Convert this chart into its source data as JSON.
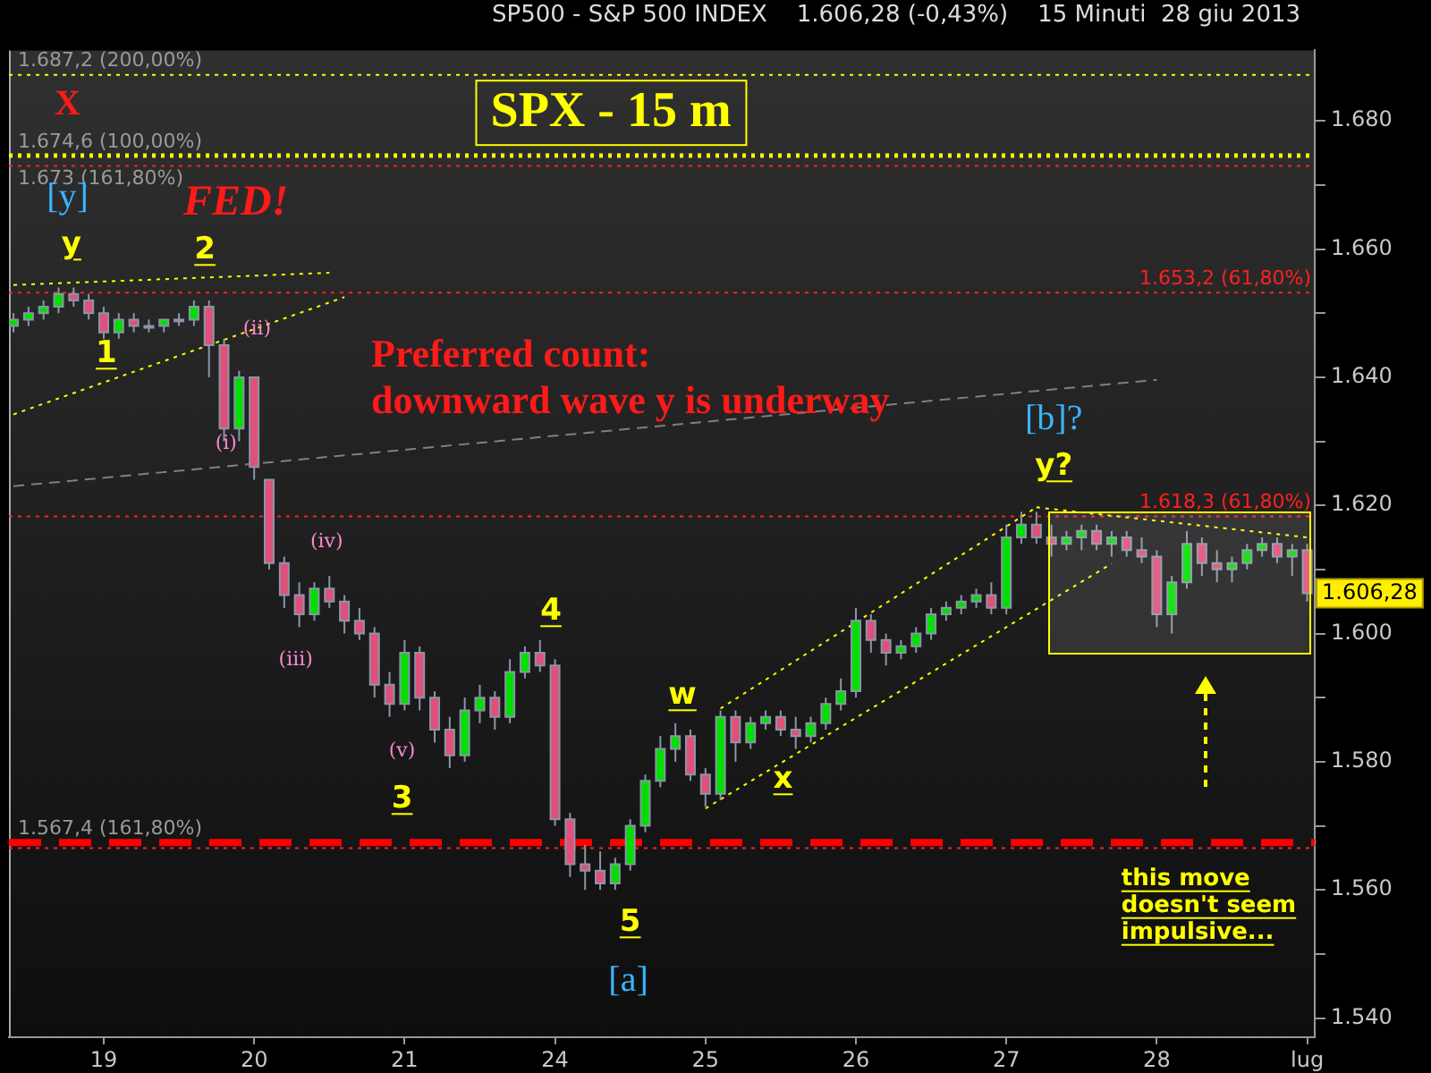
{
  "chart_data": {
    "type": "candlestick",
    "title": "SP500 - S&P 500 INDEX    1.606,28 (-0,43%)    15 Minuti  28 giu 2013",
    "categories": [
      null,
      null,
      null,
      null,
      null,
      null,
      "19",
      null,
      null,
      null,
      null,
      null,
      null,
      null,
      null,
      null,
      "20",
      null,
      null,
      null,
      null,
      null,
      null,
      null,
      null,
      null,
      "21",
      null,
      null,
      null,
      null,
      null,
      null,
      null,
      null,
      null,
      "24",
      null,
      null,
      null,
      null,
      null,
      null,
      null,
      null,
      null,
      "25",
      null,
      null,
      null,
      null,
      null,
      null,
      null,
      null,
      null,
      "26",
      null,
      null,
      null,
      null,
      null,
      null,
      null,
      null,
      null,
      "27",
      null,
      null,
      null,
      null,
      null,
      null,
      null,
      null,
      null,
      "28",
      null,
      null,
      null,
      null,
      null,
      null,
      null,
      null,
      null,
      "lug"
    ],
    "ohlc": [
      [
        1648,
        1650,
        1647,
        1649
      ],
      [
        1649,
        1651,
        1648,
        1650
      ],
      [
        1650,
        1652,
        1649,
        1651
      ],
      [
        1651,
        1654,
        1650,
        1653
      ],
      [
        1653,
        1654,
        1651,
        1652
      ],
      [
        1652,
        1653,
        1649,
        1650
      ],
      [
        1650,
        1651,
        1646,
        1647
      ],
      [
        1647,
        1650,
        1646,
        1649
      ],
      [
        1649,
        1650,
        1647,
        1648
      ],
      [
        1648,
        1649,
        1647,
        1648
      ],
      [
        1648,
        1649,
        1647,
        1649
      ],
      [
        1649,
        1650,
        1648,
        1649
      ],
      [
        1649,
        1652,
        1648,
        1651
      ],
      [
        1651,
        1652,
        1640,
        1645
      ],
      [
        1645,
        1646,
        1630,
        1632
      ],
      [
        1632,
        1641,
        1630,
        1640
      ],
      [
        1640,
        1640,
        1624,
        1626
      ],
      [
        1624,
        1624,
        1610,
        1611
      ],
      [
        1611,
        1612,
        1604,
        1606
      ],
      [
        1606,
        1608,
        1601,
        1603
      ],
      [
        1603,
        1608,
        1602,
        1607
      ],
      [
        1607,
        1609,
        1604,
        1605
      ],
      [
        1605,
        1606,
        1600,
        1602
      ],
      [
        1602,
        1604,
        1599,
        1600
      ],
      [
        1600,
        1601,
        1590,
        1592
      ],
      [
        1592,
        1594,
        1587,
        1589
      ],
      [
        1589,
        1599,
        1588,
        1597
      ],
      [
        1597,
        1598,
        1588,
        1590
      ],
      [
        1590,
        1591,
        1583,
        1585
      ],
      [
        1585,
        1587,
        1579,
        1581
      ],
      [
        1581,
        1590,
        1580,
        1588
      ],
      [
        1588,
        1592,
        1586,
        1590
      ],
      [
        1590,
        1591,
        1585,
        1587
      ],
      [
        1587,
        1596,
        1586,
        1594
      ],
      [
        1594,
        1598,
        1593,
        1597
      ],
      [
        1597,
        1599,
        1594,
        1595
      ],
      [
        1595,
        1596,
        1570,
        1571
      ],
      [
        1571,
        1572,
        1562,
        1564
      ],
      [
        1564,
        1567,
        1560,
        1563
      ],
      [
        1563,
        1566,
        1560,
        1561
      ],
      [
        1561,
        1565,
        1560,
        1564
      ],
      [
        1564,
        1571,
        1563,
        1570
      ],
      [
        1570,
        1578,
        1569,
        1577
      ],
      [
        1577,
        1584,
        1576,
        1582
      ],
      [
        1582,
        1586,
        1580,
        1584
      ],
      [
        1584,
        1585,
        1577,
        1578
      ],
      [
        1578,
        1579,
        1573,
        1575
      ],
      [
        1575,
        1588,
        1574,
        1587
      ],
      [
        1587,
        1588,
        1580,
        1583
      ],
      [
        1583,
        1587,
        1582,
        1586
      ],
      [
        1586,
        1588,
        1585,
        1587
      ],
      [
        1587,
        1588,
        1584,
        1585
      ],
      [
        1585,
        1587,
        1582,
        1584
      ],
      [
        1584,
        1587,
        1583,
        1586
      ],
      [
        1586,
        1590,
        1585,
        1589
      ],
      [
        1589,
        1593,
        1588,
        1591
      ],
      [
        1591,
        1604,
        1590,
        1602
      ],
      [
        1602,
        1603,
        1597,
        1599
      ],
      [
        1599,
        1600,
        1595,
        1597
      ],
      [
        1597,
        1599,
        1596,
        1598
      ],
      [
        1598,
        1601,
        1597,
        1600
      ],
      [
        1600,
        1604,
        1599,
        1603
      ],
      [
        1603,
        1605,
        1602,
        1604
      ],
      [
        1604,
        1606,
        1603,
        1605
      ],
      [
        1605,
        1607,
        1604,
        1606
      ],
      [
        1606,
        1608,
        1603,
        1604
      ],
      [
        1604,
        1617,
        1603,
        1615
      ],
      [
        1615,
        1619,
        1614,
        1617
      ],
      [
        1617,
        1619,
        1614,
        1615
      ],
      [
        1615,
        1617,
        1612,
        1614
      ],
      [
        1614,
        1616,
        1613,
        1615
      ],
      [
        1615,
        1617,
        1613,
        1616
      ],
      [
        1616,
        1617,
        1613,
        1614
      ],
      [
        1614,
        1616,
        1612,
        1615
      ],
      [
        1615,
        1616,
        1612,
        1613
      ],
      [
        1613,
        1615,
        1611,
        1612
      ],
      [
        1612,
        1613,
        1601,
        1603
      ],
      [
        1603,
        1609,
        1600,
        1608
      ],
      [
        1608,
        1616,
        1607,
        1614
      ],
      [
        1614,
        1615,
        1609,
        1611
      ],
      [
        1611,
        1613,
        1608,
        1610
      ],
      [
        1610,
        1612,
        1608,
        1611
      ],
      [
        1611,
        1614,
        1610,
        1613
      ],
      [
        1613,
        1615,
        1612,
        1614
      ],
      [
        1614,
        1615,
        1611,
        1612
      ],
      [
        1612,
        1614,
        1609,
        1613
      ],
      [
        1613,
        1614,
        1605,
        1606.28
      ]
    ],
    "series": [
      {
        "type": "line",
        "color": "#ffff00",
        "line_style": "dotted",
        "values": [
          1654.4,
          null,
          null,
          null,
          null,
          null,
          null,
          null,
          null,
          null,
          null,
          null,
          null,
          null,
          null,
          null,
          null,
          null,
          null,
          null,
          null,
          1656.3,
          null,
          null,
          null,
          null,
          null,
          null,
          null,
          null,
          null,
          null,
          null,
          null,
          null,
          null,
          null,
          null,
          null,
          null,
          null,
          null,
          null,
          null,
          null,
          null,
          null,
          null,
          null,
          null,
          null,
          null,
          null,
          null,
          null,
          null,
          null,
          null,
          null,
          null,
          null,
          null,
          null,
          null,
          null,
          null,
          null,
          null,
          null,
          null,
          null,
          null,
          null,
          null,
          null,
          null,
          null,
          null,
          null,
          null,
          null,
          null,
          null,
          null,
          null,
          null,
          null
        ]
      },
      {
        "type": "line",
        "color": "#ffff00",
        "line_style": "dotted",
        "values": [
          1634.2,
          null,
          null,
          null,
          null,
          null,
          null,
          null,
          null,
          null,
          null,
          null,
          null,
          null,
          null,
          null,
          null,
          null,
          null,
          null,
          null,
          null,
          1652.5,
          null,
          null,
          null,
          null,
          null,
          null,
          null,
          null,
          null,
          null,
          null,
          null,
          null,
          null,
          null,
          null,
          null,
          null,
          null,
          null,
          null,
          null,
          null,
          null,
          null,
          null,
          null,
          null,
          null,
          null,
          null,
          null,
          null,
          null,
          null,
          null,
          null,
          null,
          null,
          null,
          null,
          null,
          null,
          null,
          null,
          null,
          null,
          null,
          null,
          null,
          null,
          null,
          null,
          null,
          null,
          null,
          null,
          null,
          null,
          null,
          null,
          null,
          null,
          null
        ]
      },
      {
        "type": "line",
        "color": "#808080",
        "line_style": "dashed",
        "values": [
          1623,
          null,
          null,
          null,
          null,
          null,
          null,
          null,
          null,
          null,
          null,
          null,
          null,
          null,
          null,
          null,
          null,
          null,
          null,
          null,
          null,
          null,
          null,
          null,
          null,
          null,
          null,
          null,
          null,
          null,
          null,
          null,
          null,
          null,
          null,
          null,
          null,
          null,
          null,
          null,
          null,
          null,
          null,
          null,
          null,
          null,
          null,
          null,
          null,
          null,
          null,
          null,
          null,
          null,
          null,
          null,
          null,
          null,
          null,
          null,
          null,
          null,
          null,
          null,
          null,
          null,
          null,
          null,
          null,
          null,
          null,
          null,
          null,
          null,
          null,
          null,
          1639.6,
          null,
          null,
          null,
          null,
          null,
          null,
          null,
          null,
          null,
          null
        ]
      },
      {
        "type": "line",
        "color": "#ffff00",
        "line_style": "dotted",
        "values": [
          null,
          null,
          null,
          null,
          null,
          null,
          null,
          null,
          null,
          null,
          null,
          null,
          null,
          null,
          null,
          null,
          null,
          null,
          null,
          null,
          null,
          null,
          null,
          null,
          null,
          null,
          null,
          null,
          null,
          null,
          null,
          null,
          null,
          null,
          null,
          null,
          null,
          null,
          null,
          null,
          null,
          null,
          null,
          null,
          null,
          null,
          null,
          1588.3,
          null,
          null,
          null,
          null,
          null,
          null,
          null,
          null,
          null,
          null,
          null,
          null,
          null,
          null,
          null,
          null,
          null,
          null,
          null,
          null,
          1619.7,
          null,
          null,
          null,
          null,
          null,
          null,
          null,
          null,
          null,
          null,
          null,
          null,
          null,
          null,
          null,
          null,
          null,
          null
        ]
      },
      {
        "type": "line",
        "color": "#ffff00",
        "line_style": "dotted",
        "values": [
          null,
          null,
          null,
          null,
          null,
          null,
          null,
          null,
          null,
          null,
          null,
          null,
          null,
          null,
          null,
          null,
          null,
          null,
          null,
          null,
          null,
          null,
          null,
          null,
          null,
          null,
          null,
          null,
          null,
          null,
          null,
          null,
          null,
          null,
          null,
          null,
          null,
          null,
          null,
          null,
          null,
          null,
          null,
          null,
          null,
          null,
          1572.7,
          null,
          null,
          null,
          null,
          null,
          null,
          null,
          null,
          null,
          null,
          null,
          null,
          null,
          null,
          null,
          null,
          null,
          null,
          null,
          null,
          null,
          null,
          null,
          null,
          null,
          null,
          1610.9,
          null,
          null,
          null,
          null,
          null,
          null,
          null,
          null,
          null,
          null,
          null,
          null,
          null
        ]
      },
      {
        "type": "line",
        "color": "#ffff00",
        "line_style": "dotted",
        "values": [
          null,
          null,
          null,
          null,
          null,
          null,
          null,
          null,
          null,
          null,
          null,
          null,
          null,
          null,
          null,
          null,
          null,
          null,
          null,
          null,
          null,
          null,
          null,
          null,
          null,
          null,
          null,
          null,
          null,
          null,
          null,
          null,
          null,
          null,
          null,
          null,
          null,
          null,
          null,
          null,
          null,
          null,
          null,
          null,
          null,
          null,
          null,
          null,
          null,
          null,
          null,
          null,
          null,
          null,
          null,
          null,
          null,
          null,
          null,
          null,
          null,
          null,
          null,
          null,
          null,
          null,
          null,
          null,
          1619.7,
          null,
          null,
          null,
          null,
          null,
          null,
          null,
          null,
          null,
          null,
          null,
          null,
          null,
          null,
          null,
          null,
          null,
          1615
        ]
      }
    ],
    "ylim": [
      1537,
      1691
    ],
    "yticks": [
      {
        "value": 1540,
        "label": "1.540"
      },
      {
        "value": 1550,
        "label": null
      },
      {
        "value": 1560,
        "label": "1.560"
      },
      {
        "value": 1570,
        "label": null
      },
      {
        "value": 1580,
        "label": "1.580"
      },
      {
        "value": 1590,
        "label": null
      },
      {
        "value": 1600,
        "label": "1.600"
      },
      {
        "value": 1610,
        "label": null
      },
      {
        "value": 1620,
        "label": "1.620"
      },
      {
        "value": 1630,
        "label": null
      },
      {
        "value": 1640,
        "label": "1.640"
      },
      {
        "value": 1650,
        "label": null
      },
      {
        "value": 1660,
        "label": "1.660"
      },
      {
        "value": 1670,
        "label": null
      },
      {
        "value": 1680,
        "label": "1.680"
      }
    ],
    "ref_lines": [
      {
        "axis": "y",
        "value": 1687.2,
        "label": "1.687,2 (200,00%)",
        "color": "#ffff00",
        "line_style": "dotted"
      },
      {
        "axis": "y",
        "value": 1674.6,
        "label": "1.674,6 (100,00%)",
        "color": "#ffff00",
        "line_style": "dotted"
      },
      {
        "axis": "y",
        "value": 1673,
        "label": "1.673 (161,80%)",
        "color": "#ff2020",
        "line_style": "dotted"
      },
      {
        "axis": "y",
        "value": 1653.2,
        "label": "1.653,2 (61,80%)",
        "color": "#ff2020",
        "line_style": "dotted"
      },
      {
        "axis": "y",
        "value": 1618.3,
        "label": "1.618,3 (61,80%)",
        "color": "#ff2020",
        "line_style": "dotted"
      },
      {
        "axis": "y",
        "value": 1567.4,
        "label": "1.567,4 (161,80%)",
        "color": "#ff0000",
        "line_style": "dashed"
      },
      {
        "axis": "y",
        "value": 1566.5,
        "color": "#ff2020",
        "line_style": "dotted"
      }
    ],
    "annotations": [
      "X",
      "[y]",
      "y",
      "FED!",
      "2",
      "1",
      "(ii)",
      "(i)",
      "(iv)",
      "(iii)",
      "(v)",
      "3",
      "4",
      "5",
      "[a]",
      "w",
      "x",
      "[b]?",
      "y?",
      "SPX - 15 m",
      "Preferred count:",
      "downward wave y is underway",
      "this move",
      "doesn't seem",
      "impulsive...",
      "1.606,28"
    ]
  }
}
